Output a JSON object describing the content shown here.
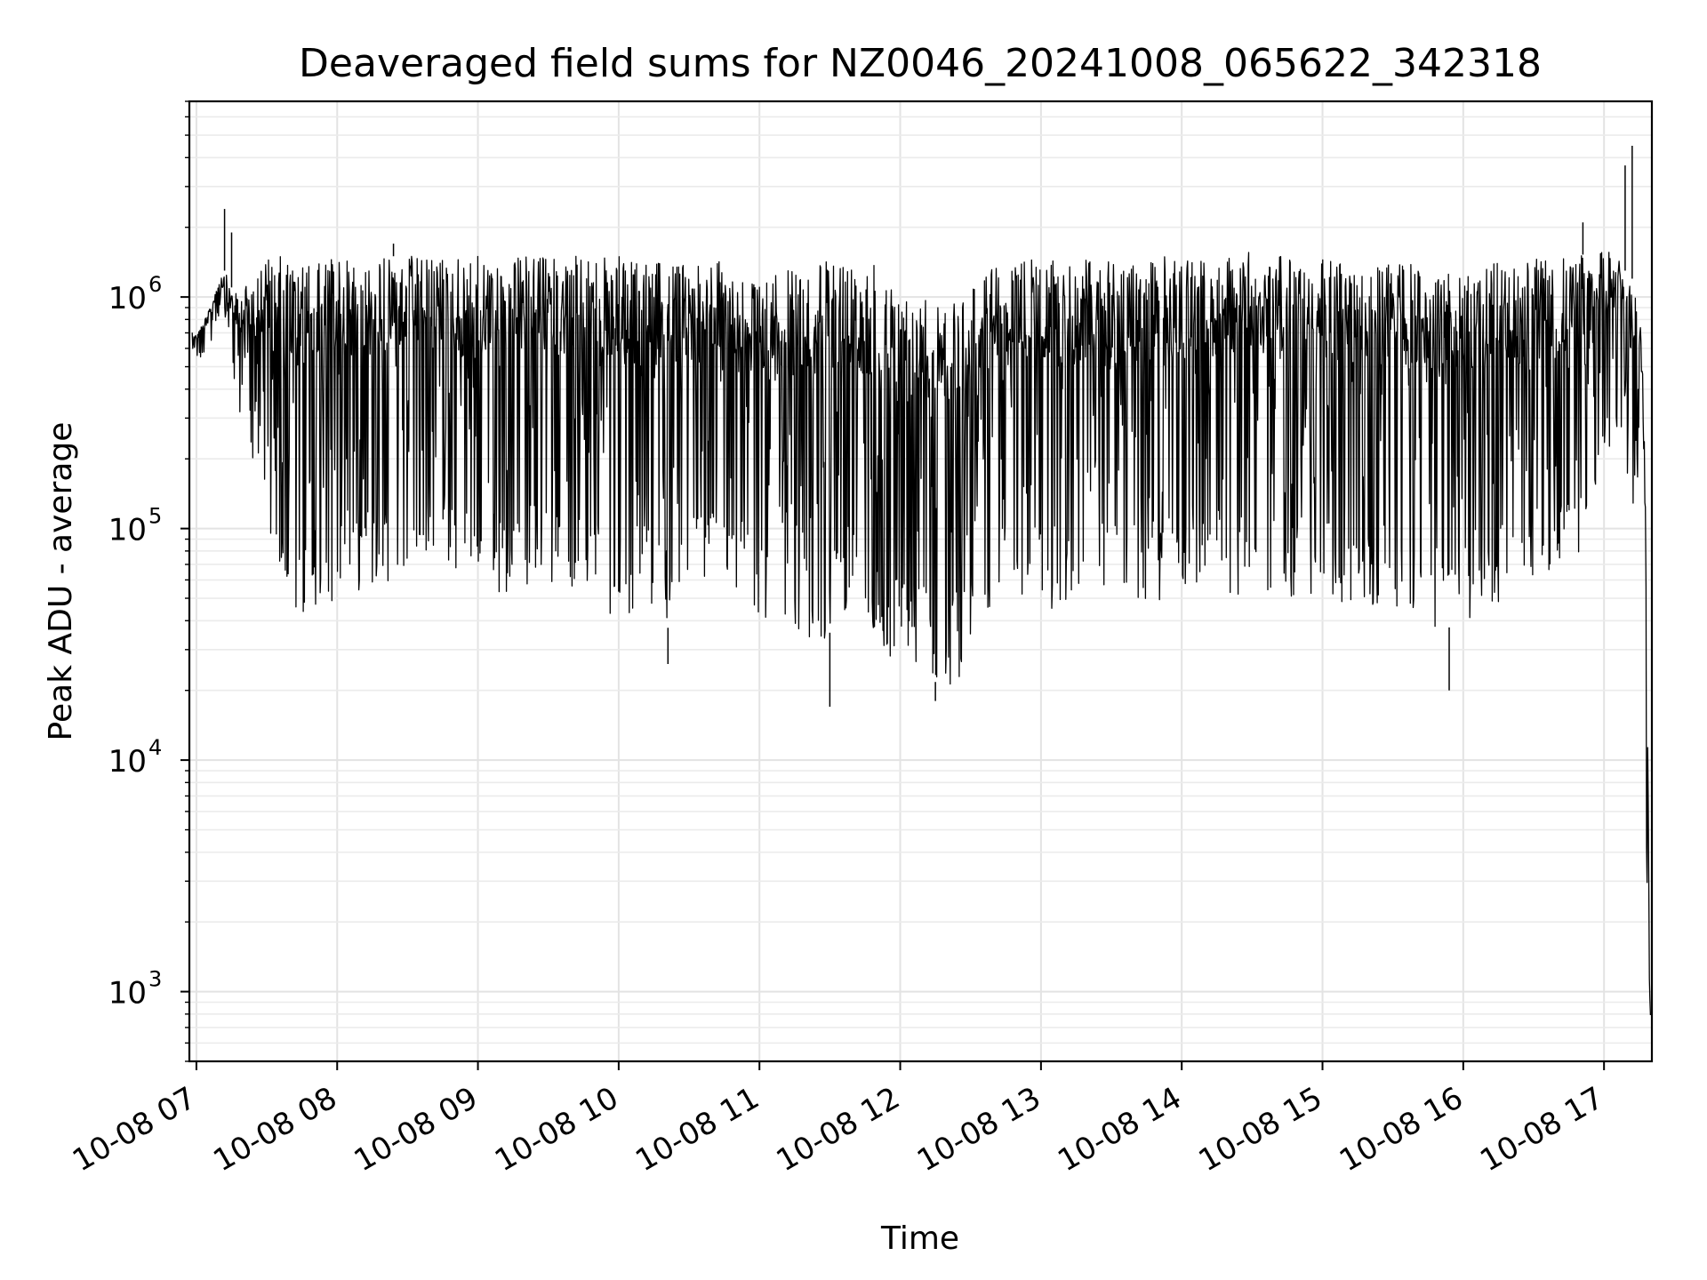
{
  "chart_data": {
    "type": "line",
    "title": "Deaveraged field sums for NZ0046_20241008_065622_342318",
    "xlabel": "Time",
    "ylabel": "Peak ADU - average",
    "yscale": "log",
    "ylim": [
      500,
      7000000
    ],
    "xlim": [
      "10-08 06:57",
      "10-08 17:20"
    ],
    "grid": true,
    "grid_minor": true,
    "line_color": "#000000",
    "x_ticks": [
      "10-08 07",
      "10-08 08",
      "10-08 09",
      "10-08 10",
      "10-08 11",
      "10-08 12",
      "10-08 13",
      "10-08 14",
      "10-08 15",
      "10-08 16",
      "10-08 17"
    ],
    "y_ticks": [
      {
        "base": "10",
        "exp": "3",
        "value": 1000
      },
      {
        "base": "10",
        "exp": "4",
        "value": 10000
      },
      {
        "base": "10",
        "exp": "5",
        "value": 100000
      },
      {
        "base": "10",
        "exp": "6",
        "value": 1000000
      }
    ],
    "series": [
      {
        "x_hours": [
          6.97,
          7.0,
          7.05,
          7.1,
          7.15,
          7.2,
          7.25,
          7.3,
          7.4,
          7.5,
          7.6,
          7.7,
          7.8,
          7.9,
          8.0,
          8.2,
          8.4,
          8.6,
          8.8,
          9.0,
          9.2,
          9.4,
          9.6,
          9.8,
          10.0,
          10.2,
          10.4,
          10.6,
          10.8,
          11.0,
          11.2,
          11.4,
          11.6,
          11.8,
          12.0,
          12.2,
          12.4,
          12.6,
          12.8,
          13.0,
          13.2,
          13.4,
          13.6,
          13.8,
          14.0,
          14.2,
          14.4,
          14.6,
          14.8,
          15.0,
          15.2,
          15.4,
          15.6,
          15.8,
          16.0,
          16.2,
          16.4,
          16.6,
          16.8,
          17.0,
          17.1,
          17.15,
          17.2,
          17.25,
          17.28,
          17.3,
          17.32,
          17.33
        ],
        "upper": [
          750000,
          700000,
          800000,
          900000,
          1200000,
          1300000,
          1100000,
          1000000,
          1300000,
          1500000,
          1500000,
          1400000,
          1400000,
          1400000,
          1500000,
          1500000,
          1500000,
          1500000,
          1500000,
          1500000,
          1500000,
          1500000,
          1500000,
          1500000,
          1500000,
          1400000,
          1400000,
          1500000,
          1400000,
          1200000,
          1300000,
          1400000,
          1500000,
          1400000,
          1100000,
          1000000,
          1100000,
          1300000,
          1400000,
          1500000,
          1400000,
          1500000,
          1400000,
          1500000,
          1500000,
          1500000,
          1600000,
          1500000,
          1500000,
          1500000,
          1400000,
          1400000,
          1400000,
          1300000,
          1300000,
          1400000,
          1400000,
          1500000,
          1500000,
          1600000,
          1500000,
          1300000,
          1200000,
          1000000,
          400000,
          100000,
          3000,
          800
        ],
        "lower": [
          550000,
          520000,
          560000,
          600000,
          800000,
          700000,
          500000,
          300000,
          200000,
          80000,
          45000,
          42000,
          40000,
          45000,
          50000,
          55000,
          60000,
          70000,
          65000,
          55000,
          50000,
          60000,
          55000,
          50000,
          40000,
          45000,
          35000,
          60000,
          55000,
          40000,
          35000,
          28000,
          45000,
          30000,
          25000,
          22000,
          21000,
          45000,
          50000,
          45000,
          40000,
          50000,
          45000,
          45000,
          55000,
          55000,
          50000,
          50000,
          50000,
          50000,
          45000,
          45000,
          40000,
          35000,
          40000,
          45000,
          50000,
          60000,
          70000,
          200000,
          250000,
          150000,
          100000,
          150000,
          100000,
          5000,
          800,
          700
        ]
      }
    ],
    "spikes": [
      {
        "x_hours": 7.2,
        "y": 2400000
      },
      {
        "x_hours": 7.25,
        "y": 1900000
      },
      {
        "x_hours": 8.4,
        "y": 1700000
      },
      {
        "x_hours": 10.35,
        "y": 26000
      },
      {
        "x_hours": 11.5,
        "y": 17000
      },
      {
        "x_hours": 12.25,
        "y": 18000
      },
      {
        "x_hours": 15.9,
        "y": 20000
      },
      {
        "x_hours": 16.85,
        "y": 2100000
      },
      {
        "x_hours": 17.15,
        "y": 3700000
      },
      {
        "x_hours": 17.2,
        "y": 4500000
      }
    ]
  }
}
